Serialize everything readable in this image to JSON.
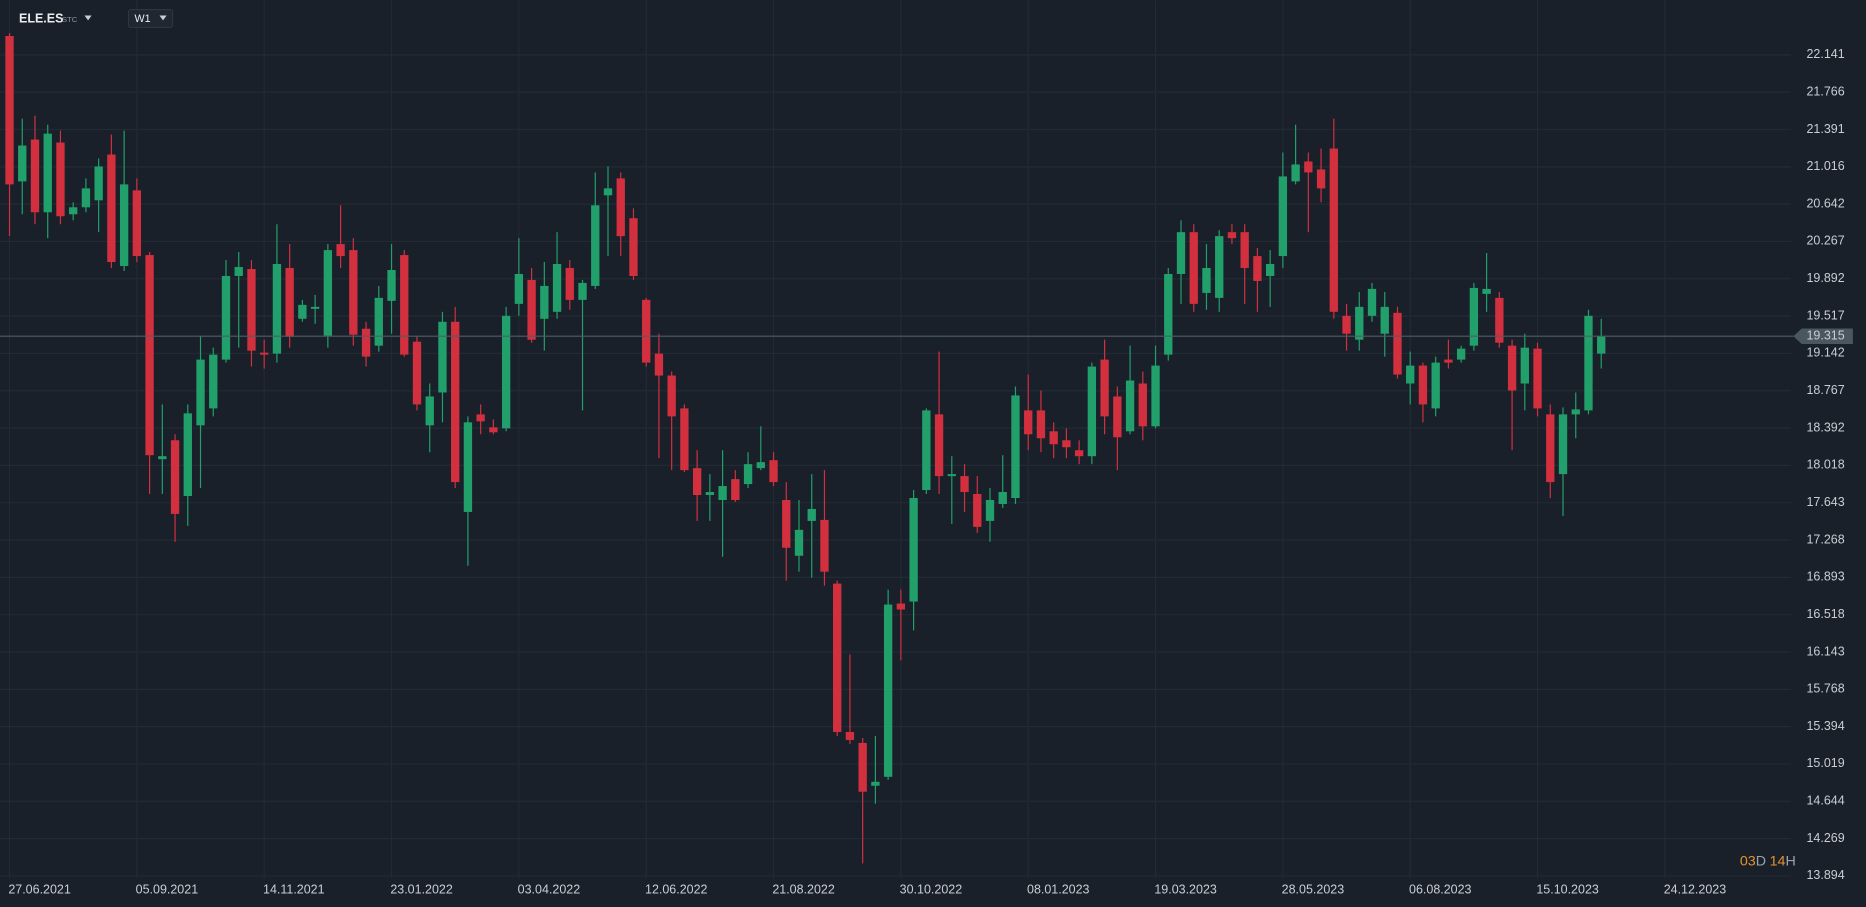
{
  "toolbar": {
    "symbol": "ELE.ES",
    "symbol_type": "STC",
    "timeframe": "W1"
  },
  "countdown": {
    "days": "03",
    "day_unit": "D",
    "hours": "14",
    "hour_unit": "H"
  },
  "chart_data": {
    "type": "candlestick",
    "up_color": "#22a06b",
    "down_color": "#d2303f",
    "grid": true,
    "categories": [
      "27.06.2021",
      null,
      null,
      null,
      null,
      null,
      null,
      null,
      null,
      null,
      "05.09.2021",
      null,
      null,
      null,
      null,
      null,
      null,
      null,
      null,
      null,
      "14.11.2021",
      null,
      null,
      null,
      null,
      null,
      null,
      null,
      null,
      null,
      "23.01.2022",
      null,
      null,
      null,
      null,
      null,
      null,
      null,
      null,
      null,
      "03.04.2022",
      null,
      null,
      null,
      null,
      null,
      null,
      null,
      null,
      null,
      "12.06.2022",
      null,
      null,
      null,
      null,
      null,
      null,
      null,
      null,
      null,
      "21.08.2022",
      null,
      null,
      null,
      null,
      null,
      null,
      null,
      null,
      null,
      "30.10.2022",
      null,
      null,
      null,
      null,
      null,
      null,
      null,
      null,
      null,
      "08.01.2023",
      null,
      null,
      null,
      null,
      null,
      null,
      null,
      null,
      null,
      "19.03.2023",
      null,
      null,
      null,
      null,
      null,
      null,
      null,
      null,
      null,
      "28.05.2023",
      null,
      null,
      null,
      null,
      null,
      null,
      null,
      null,
      null,
      "06.08.2023",
      null,
      null,
      null,
      null,
      null,
      null,
      null,
      null,
      null,
      "15.10.2023",
      null,
      null,
      null,
      null,
      null,
      null,
      null,
      null,
      null,
      "24.12.2023"
    ],
    "open": [
      22.33,
      20.87,
      21.29,
      20.56,
      21.26,
      20.54,
      20.61,
      20.68,
      21.14,
      20.02,
      20.78,
      20.13,
      18.08,
      18.27,
      17.71,
      18.42,
      18.59,
      19.08,
      19.92,
      19.99,
      19.15,
      19.14,
      20.0,
      19.49,
      19.59,
      19.32,
      20.24,
      20.18,
      19.39,
      19.22,
      19.67,
      20.13,
      19.26,
      18.42,
      18.75,
      19.46,
      17.55,
      18.53,
      18.4,
      18.39,
      19.64,
      19.88,
      19.49,
      19.56,
      20.0,
      19.68,
      19.82,
      20.73,
      20.9,
      20.5,
      19.68,
      19.14,
      18.92,
      18.59,
      17.99,
      17.72,
      17.67,
      17.88,
      17.83,
      17.99,
      18.07,
      17.67,
      17.11,
      17.46,
      17.47,
      16.83,
      15.34,
      15.23,
      14.8,
      14.89,
      16.63,
      16.65,
      17.77,
      18.53,
      17.91,
      17.91,
      17.73,
      17.46,
      17.63,
      17.69,
      18.57,
      18.57,
      18.36,
      18.27,
      18.17,
      18.11,
      19.08,
      18.71,
      18.36,
      18.84,
      18.41,
      19.13,
      19.94,
      20.36,
      19.75,
      19.7,
      20.36,
      20.36,
      20.12,
      19.92,
      20.12,
      20.87,
      21.07,
      20.99,
      21.2,
      19.52,
      19.28,
      19.52,
      19.34,
      19.55,
      18.84,
      19.02,
      18.59,
      19.08,
      19.08,
      19.22,
      19.74,
      19.7,
      19.22,
      18.84,
      19.19,
      18.53,
      17.93,
      18.53,
      18.57,
      19.14,
      null,
      null,
      null,
      null,
      null
    ],
    "high": [
      22.36,
      21.5,
      21.53,
      21.44,
      21.38,
      20.66,
      20.9,
      21.1,
      21.34,
      21.38,
      20.9,
      20.16,
      18.63,
      18.33,
      18.63,
      19.32,
      19.2,
      20.08,
      20.16,
      20.08,
      19.28,
      20.44,
      20.24,
      19.68,
      19.73,
      20.24,
      20.63,
      20.3,
      19.46,
      19.82,
      20.24,
      20.18,
      19.32,
      18.84,
      19.56,
      19.61,
      18.51,
      18.63,
      18.48,
      19.61,
      20.3,
      20.0,
      20.06,
      20.36,
      20.08,
      19.88,
      20.96,
      21.02,
      20.96,
      20.6,
      19.7,
      19.34,
      18.96,
      18.63,
      18.17,
      17.93,
      18.17,
      17.97,
      18.15,
      18.41,
      18.15,
      17.85,
      17.67,
      17.93,
      17.97,
      16.86,
      16.12,
      15.28,
      15.3,
      16.77,
      16.77,
      17.77,
      18.59,
      19.16,
      18.11,
      18.03,
      17.91,
      17.79,
      18.12,
      18.81,
      18.93,
      18.77,
      18.45,
      18.39,
      18.27,
      19.05,
      19.28,
      18.81,
      19.22,
      18.96,
      19.22,
      20.0,
      20.48,
      20.44,
      20.24,
      20.38,
      20.44,
      20.44,
      20.2,
      20.18,
      21.16,
      21.44,
      21.16,
      21.2,
      21.5,
      19.64,
      19.76,
      19.85,
      19.76,
      19.61,
      19.16,
      19.05,
      19.11,
      19.28,
      19.22,
      19.85,
      20.15,
      19.76,
      19.28,
      19.34,
      19.25,
      18.63,
      18.6,
      18.75,
      19.58,
      19.49,
      null,
      null,
      null,
      null,
      null
    ],
    "low": [
      20.32,
      20.54,
      20.44,
      20.3,
      20.44,
      20.48,
      20.56,
      20.36,
      20.0,
      19.97,
      20.06,
      17.73,
      17.73,
      17.25,
      17.41,
      17.79,
      18.51,
      19.05,
      19.2,
      19.01,
      18.99,
      19.05,
      19.2,
      19.46,
      19.44,
      19.2,
      20.0,
      19.22,
      19.01,
      19.16,
      19.34,
      19.11,
      18.57,
      18.15,
      18.45,
      17.79,
      17.01,
      18.33,
      18.33,
      18.36,
      19.52,
      19.25,
      19.17,
      19.49,
      19.58,
      18.57,
      19.79,
      20.12,
      20.12,
      19.88,
      19.01,
      18.09,
      17.97,
      17.95,
      17.46,
      17.46,
      17.1,
      17.65,
      17.79,
      17.97,
      17.81,
      16.86,
      16.95,
      16.89,
      16.81,
      15.3,
      15.22,
      14.02,
      14.62,
      14.86,
      16.06,
      16.36,
      17.73,
      17.73,
      17.43,
      17.55,
      17.34,
      17.25,
      17.59,
      17.63,
      18.17,
      18.15,
      18.09,
      18.09,
      18.03,
      18.03,
      18.33,
      17.97,
      18.33,
      18.27,
      18.39,
      19.07,
      19.64,
      19.56,
      19.58,
      19.56,
      20.24,
      19.64,
      19.56,
      19.61,
      20.0,
      20.84,
      20.36,
      20.66,
      19.49,
      19.17,
      19.17,
      19.46,
      19.11,
      18.89,
      18.63,
      18.45,
      18.51,
      18.99,
      19.05,
      19.17,
      19.56,
      19.2,
      18.17,
      18.57,
      18.51,
      17.69,
      17.51,
      18.29,
      18.53,
      18.99,
      null,
      null,
      null,
      null,
      null
    ],
    "close": [
      20.84,
      21.23,
      20.56,
      21.35,
      20.52,
      20.61,
      20.8,
      21.02,
      20.06,
      20.84,
      20.12,
      18.12,
      18.11,
      17.53,
      18.54,
      19.08,
      19.13,
      19.92,
      20.01,
      19.17,
      19.13,
      20.04,
      19.31,
      19.63,
      19.61,
      20.18,
      20.12,
      19.33,
      19.11,
      19.7,
      19.98,
      19.13,
      18.63,
      18.71,
      19.46,
      17.85,
      18.45,
      18.46,
      18.35,
      19.52,
      19.94,
      19.28,
      19.82,
      20.04,
      19.68,
      19.85,
      20.63,
      20.8,
      20.32,
      19.92,
      19.05,
      18.92,
      18.51,
      17.97,
      17.72,
      17.75,
      17.81,
      17.67,
      18.03,
      18.05,
      17.85,
      17.19,
      17.37,
      17.58,
      16.95,
      15.34,
      15.26,
      14.74,
      14.84,
      16.62,
      16.57,
      17.69,
      18.57,
      17.91,
      17.93,
      17.75,
      17.4,
      17.67,
      17.75,
      18.72,
      18.33,
      18.29,
      18.23,
      18.2,
      18.11,
      19.01,
      18.51,
      18.3,
      18.87,
      18.41,
      19.02,
      19.94,
      20.36,
      19.64,
      20.0,
      20.32,
      20.3,
      20.0,
      19.87,
      20.04,
      20.92,
      21.04,
      20.96,
      20.8,
      19.56,
      19.34,
      19.61,
      19.79,
      19.61,
      18.93,
      19.02,
      18.63,
      19.05,
      19.05,
      19.19,
      19.8,
      19.79,
      19.25,
      18.77,
      19.2,
      18.59,
      17.85,
      18.53,
      18.58,
      19.52,
      19.315,
      null,
      null,
      null,
      null,
      null
    ],
    "ylim": [
      13.583,
      22.691
    ],
    "yticks": [
      22.141,
      21.766,
      21.391,
      21.016,
      20.642,
      20.267,
      19.892,
      19.517,
      19.142,
      18.767,
      18.392,
      18.018,
      17.643,
      17.268,
      16.893,
      16.518,
      16.143,
      15.768,
      15.394,
      15.019,
      14.644,
      14.269,
      13.894
    ]
  }
}
